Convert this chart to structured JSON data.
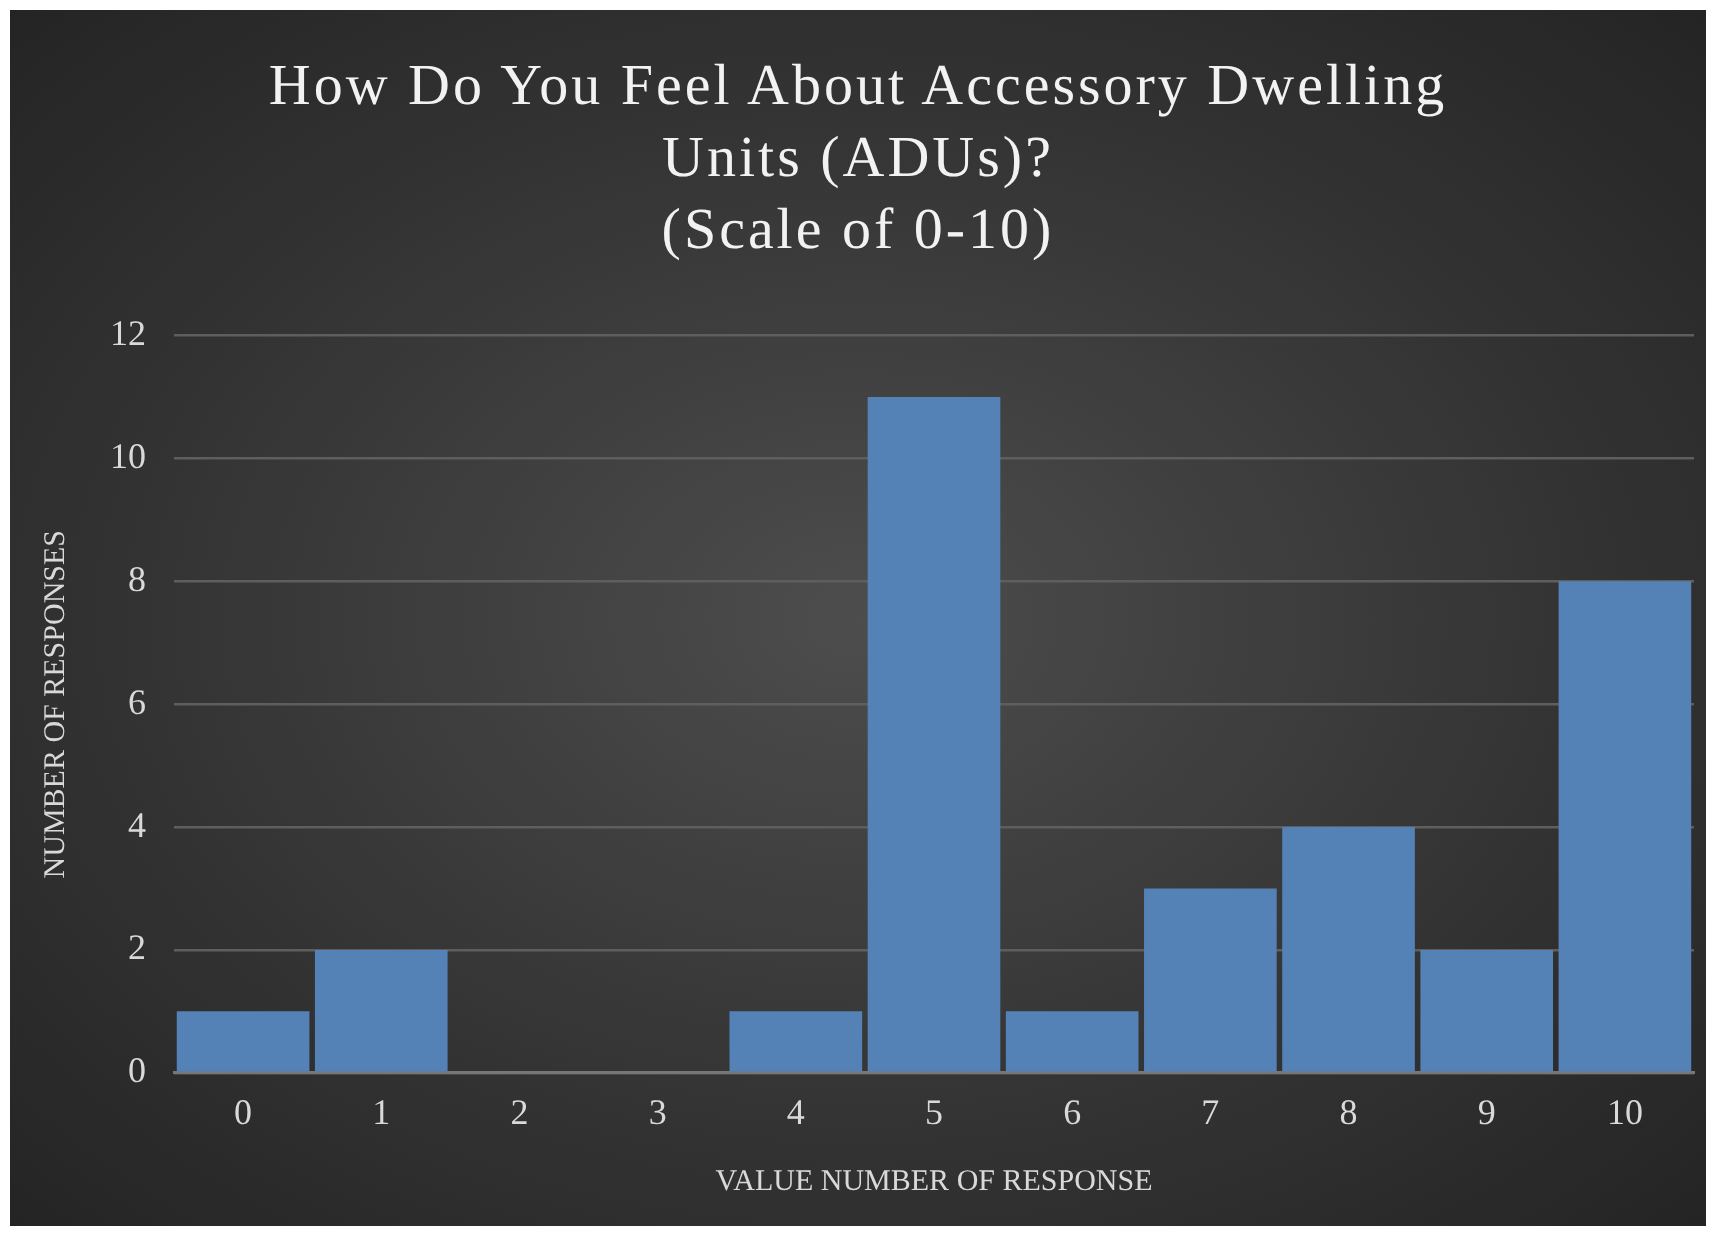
{
  "chart_data": {
    "type": "bar",
    "title": "How Do You Feel About Accessory Dwelling Units (ADUs)?",
    "subtitle": "(Scale of 0-10)",
    "xlabel": "VALUE NUMBER OF RESPONSE",
    "ylabel": "NUMBER OF RESPONSES",
    "categories": [
      "0",
      "1",
      "2",
      "3",
      "4",
      "5",
      "6",
      "7",
      "8",
      "9",
      "10"
    ],
    "values": [
      1,
      2,
      0,
      0,
      1,
      11,
      1,
      3,
      4,
      2,
      8
    ],
    "color": "#5582b6",
    "ylim": [
      0,
      12
    ],
    "yticks": [
      0,
      2,
      4,
      6,
      8,
      10,
      12
    ],
    "grid": "y",
    "legend": false
  }
}
